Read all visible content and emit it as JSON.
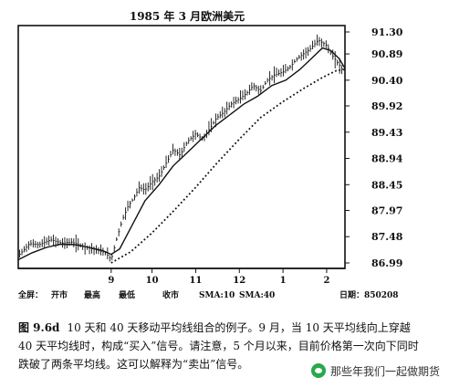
{
  "chart_data": {
    "type": "line",
    "title": "1985 年 3 月欧洲美元",
    "y_ticks": [
      "91.30",
      "90.89",
      "90.40",
      "89.92",
      "89.43",
      "88.94",
      "88.45",
      "87.97",
      "87.48",
      "86.99"
    ],
    "ylim": [
      86.99,
      91.3
    ],
    "x_ticks": [
      "9",
      "10",
      "11",
      "12",
      "1",
      "2"
    ],
    "x_tick_days": [
      66,
      95,
      126,
      157,
      188,
      219
    ],
    "xlim": [
      0,
      232
    ],
    "series": [
      {
        "key": "price",
        "x": [
          0,
          8,
          15,
          23,
          31,
          38,
          46,
          54,
          62,
          66,
          70,
          74,
          78,
          82,
          86,
          90,
          95,
          100,
          105,
          110,
          115,
          120,
          126,
          131,
          136,
          141,
          146,
          151,
          157,
          162,
          167,
          172,
          177,
          182,
          188,
          193,
          198,
          203,
          208,
          213,
          216,
          219,
          222,
          226,
          229,
          232
        ],
        "values": [
          87.12,
          87.35,
          87.33,
          87.42,
          87.36,
          87.38,
          87.3,
          87.24,
          87.18,
          87.05,
          87.45,
          87.8,
          88.05,
          88.2,
          88.4,
          88.35,
          88.5,
          88.6,
          88.85,
          89.1,
          89.0,
          89.25,
          89.4,
          89.3,
          89.5,
          89.7,
          89.8,
          89.95,
          90.05,
          90.15,
          90.3,
          90.2,
          90.4,
          90.5,
          90.55,
          90.65,
          90.8,
          90.9,
          91.0,
          91.15,
          91.1,
          91.05,
          90.9,
          90.75,
          90.65,
          90.5
        ]
      },
      {
        "key": "sma10",
        "x": [
          0,
          10,
          20,
          30,
          40,
          50,
          60,
          66,
          72,
          80,
          90,
          100,
          110,
          120,
          130,
          140,
          150,
          160,
          170,
          180,
          190,
          200,
          210,
          216,
          222,
          228,
          232
        ],
        "values": [
          87.05,
          87.18,
          87.28,
          87.34,
          87.33,
          87.28,
          87.22,
          87.15,
          87.25,
          87.65,
          88.15,
          88.45,
          88.8,
          89.05,
          89.3,
          89.55,
          89.75,
          89.95,
          90.1,
          90.3,
          90.4,
          90.6,
          90.85,
          91.0,
          90.95,
          90.8,
          90.62
        ]
      },
      {
        "key": "sma40",
        "x": [
          66,
          80,
          95,
          110,
          126,
          141,
          157,
          172,
          188,
          203,
          216,
          226,
          232
        ],
        "values": [
          86.99,
          87.2,
          87.55,
          87.95,
          88.4,
          88.85,
          89.3,
          89.7,
          90.0,
          90.25,
          90.45,
          90.58,
          90.6
        ]
      }
    ]
  },
  "footer": {
    "legend_items": [
      "全屏：",
      "开市",
      "最高",
      "最低",
      "收市",
      "SMA:10",
      "SMA:40"
    ],
    "date_label": "日期：850208"
  },
  "caption": {
    "fig_label": "图 9.6d",
    "text": "10 天和 40 天移动平均线组合的例子。9 月，当 10 天平均线向上穿越 40 天平均线时，构成“买入”信号。请注意，5 个月以来，目前价格第一次向下同时跌破了两条平均线。这可以解释为“卖出”信号。"
  },
  "watermark": {
    "text": "那些年我们一起做期货"
  },
  "colors": {
    "ink": "#111111",
    "background": "#ffffff",
    "watermark_logo": "#2aa84a"
  }
}
